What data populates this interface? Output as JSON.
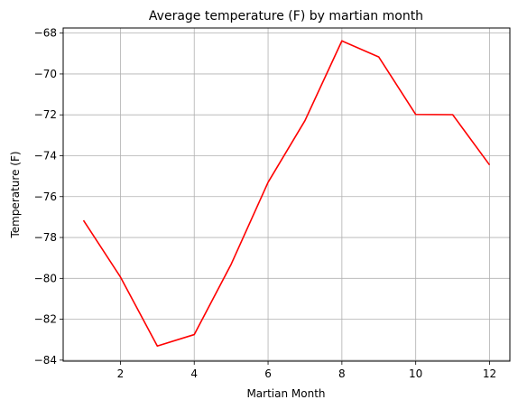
{
  "chart_data": {
    "type": "line",
    "title": "Average temperature (F) by martian month",
    "xlabel": "Martian Month",
    "ylabel": "Temperature (F)",
    "x": [
      1,
      2,
      3,
      4,
      5,
      6,
      7,
      8,
      9,
      10,
      11,
      12
    ],
    "series": [
      {
        "values": [
          -77.16,
          -79.93,
          -83.31,
          -82.75,
          -79.31,
          -75.3,
          -72.28,
          -68.38,
          -69.17,
          -71.98,
          -71.99,
          -74.45
        ],
        "color": "#ff0000"
      }
    ],
    "xlim": [
      0.45,
      12.55
    ],
    "ylim": [
      -84.05,
      -67.75
    ],
    "xticks": [
      2,
      4,
      6,
      8,
      10,
      12
    ],
    "yticks": [
      -84,
      -82,
      -80,
      -78,
      -76,
      -74,
      -72,
      -70,
      -68
    ],
    "grid": true,
    "legend": "none"
  }
}
